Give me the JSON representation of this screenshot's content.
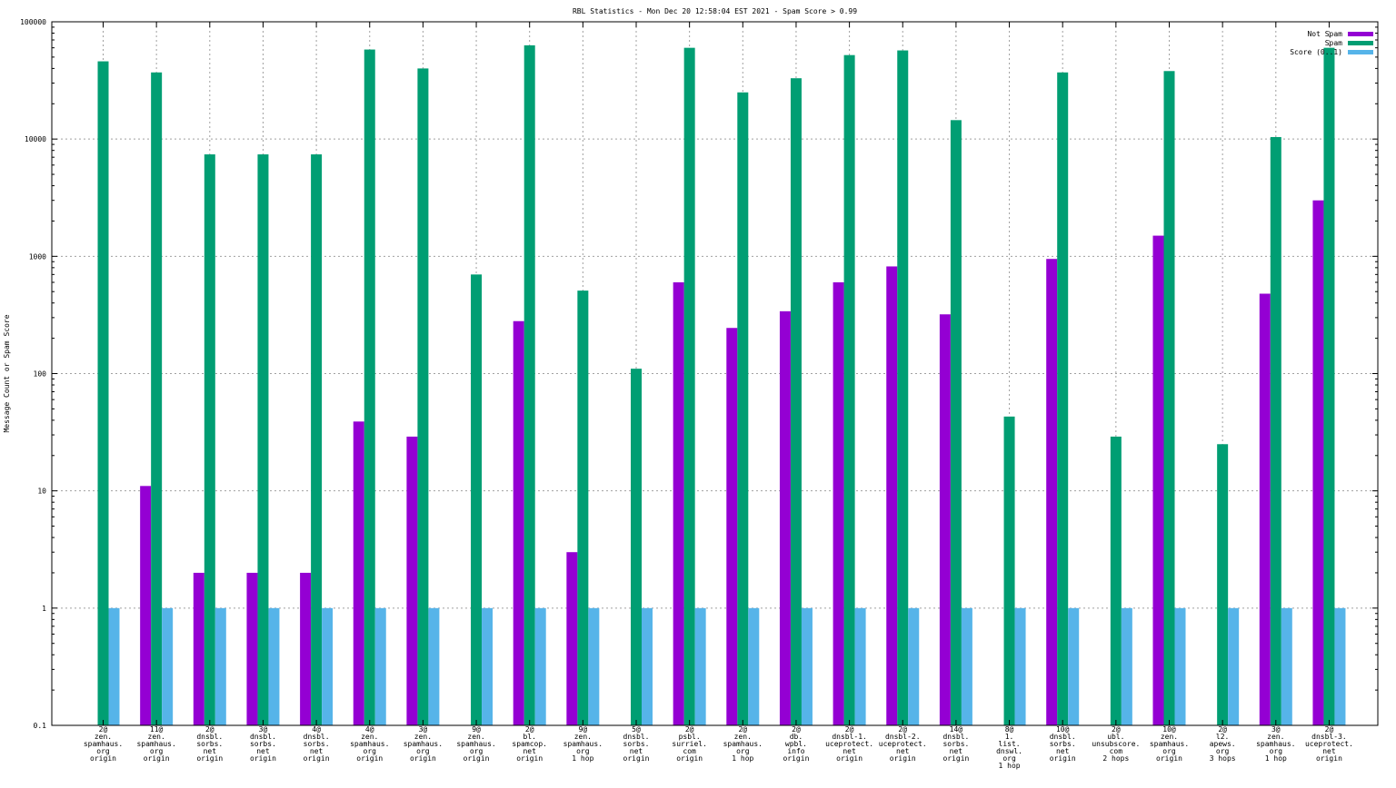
{
  "chart_data": {
    "type": "bar",
    "title": "RBL Statistics - Mon Dec 20 12:58:04 EST 2021 - Spam Score > 0.99",
    "xlabel": "",
    "ylabel": "Message Count or Spam Score",
    "yscale": "log",
    "ylim": [
      0.1,
      100000
    ],
    "yticks": [
      "0.1",
      "1",
      "10",
      "100",
      "1000",
      "10000",
      "100000"
    ],
    "grid": true,
    "legend_position": "top-right",
    "categories": [
      [
        "2@",
        "zen.",
        "spamhaus.",
        "org",
        "origin"
      ],
      [
        "11@",
        "zen.",
        "spamhaus.",
        "org",
        "origin"
      ],
      [
        "2@",
        "dnsbl.",
        "sorbs.",
        "net",
        "origin"
      ],
      [
        "3@",
        "dnsbl.",
        "sorbs.",
        "net",
        "origin"
      ],
      [
        "4@",
        "dnsbl.",
        "sorbs.",
        "net",
        "origin"
      ],
      [
        "4@",
        "zen.",
        "spamhaus.",
        "org",
        "origin"
      ],
      [
        "3@",
        "zen.",
        "spamhaus.",
        "org",
        "origin"
      ],
      [
        "9@",
        "zen.",
        "spamhaus.",
        "org",
        "origin"
      ],
      [
        "2@",
        "bl.",
        "spamcop.",
        "net",
        "origin"
      ],
      [
        "9@",
        "zen.",
        "spamhaus.",
        "org",
        "1 hop"
      ],
      [
        "5@",
        "dnsbl.",
        "sorbs.",
        "net",
        "origin"
      ],
      [
        "2@",
        "psbl.",
        "surriel.",
        "com",
        "origin"
      ],
      [
        "2@",
        "zen.",
        "spamhaus.",
        "org",
        "1 hop"
      ],
      [
        "2@",
        "db.",
        "wpbl.",
        "info",
        "origin"
      ],
      [
        "2@",
        "dnsbl-1.",
        "uceprotect.",
        "net",
        "origin"
      ],
      [
        "2@",
        "dnsbl-2.",
        "uceprotect.",
        "net",
        "origin"
      ],
      [
        "14@",
        "dnsbl.",
        "sorbs.",
        "net",
        "origin"
      ],
      [
        "8@",
        "1.",
        "list.",
        "dnswl.",
        "org",
        "1 hop"
      ],
      [
        "10@",
        "dnsbl.",
        "sorbs.",
        "net",
        "origin"
      ],
      [
        "2@",
        "ubl.",
        "unsubscore.",
        "com",
        "2 hops"
      ],
      [
        "10@",
        "zen.",
        "spamhaus.",
        "org",
        "origin"
      ],
      [
        "2@",
        "l2.",
        "apews.",
        "org",
        "3 hops"
      ],
      [
        "3@",
        "zen.",
        "spamhaus.",
        "org",
        "1 hop"
      ],
      [
        "2@",
        "dnsbl-3.",
        "uceprotect.",
        "net",
        "origin"
      ]
    ],
    "series": [
      {
        "name": "Not Spam",
        "color": "#9400d3",
        "values": [
          0,
          11,
          2,
          2,
          2,
          39,
          29,
          0,
          280,
          3,
          0,
          600,
          245,
          340,
          600,
          820,
          320,
          0,
          950,
          0,
          1500,
          0,
          480,
          3000
        ]
      },
      {
        "name": "Spam",
        "color": "#009e73",
        "values": [
          46000,
          37000,
          7400,
          7400,
          7400,
          58000,
          40000,
          700,
          63000,
          510,
          110,
          60000,
          25000,
          33000,
          52000,
          57000,
          14500,
          43,
          37000,
          29,
          38000,
          25,
          10400,
          60000
        ]
      },
      {
        "name": "Score (0..1)",
        "color": "#56b4e9",
        "values": [
          1,
          1,
          1,
          1,
          1,
          1,
          1,
          1,
          1,
          1,
          1,
          1,
          1,
          1,
          1,
          1,
          1,
          1,
          1,
          1,
          1,
          1,
          1,
          1
        ]
      }
    ]
  }
}
